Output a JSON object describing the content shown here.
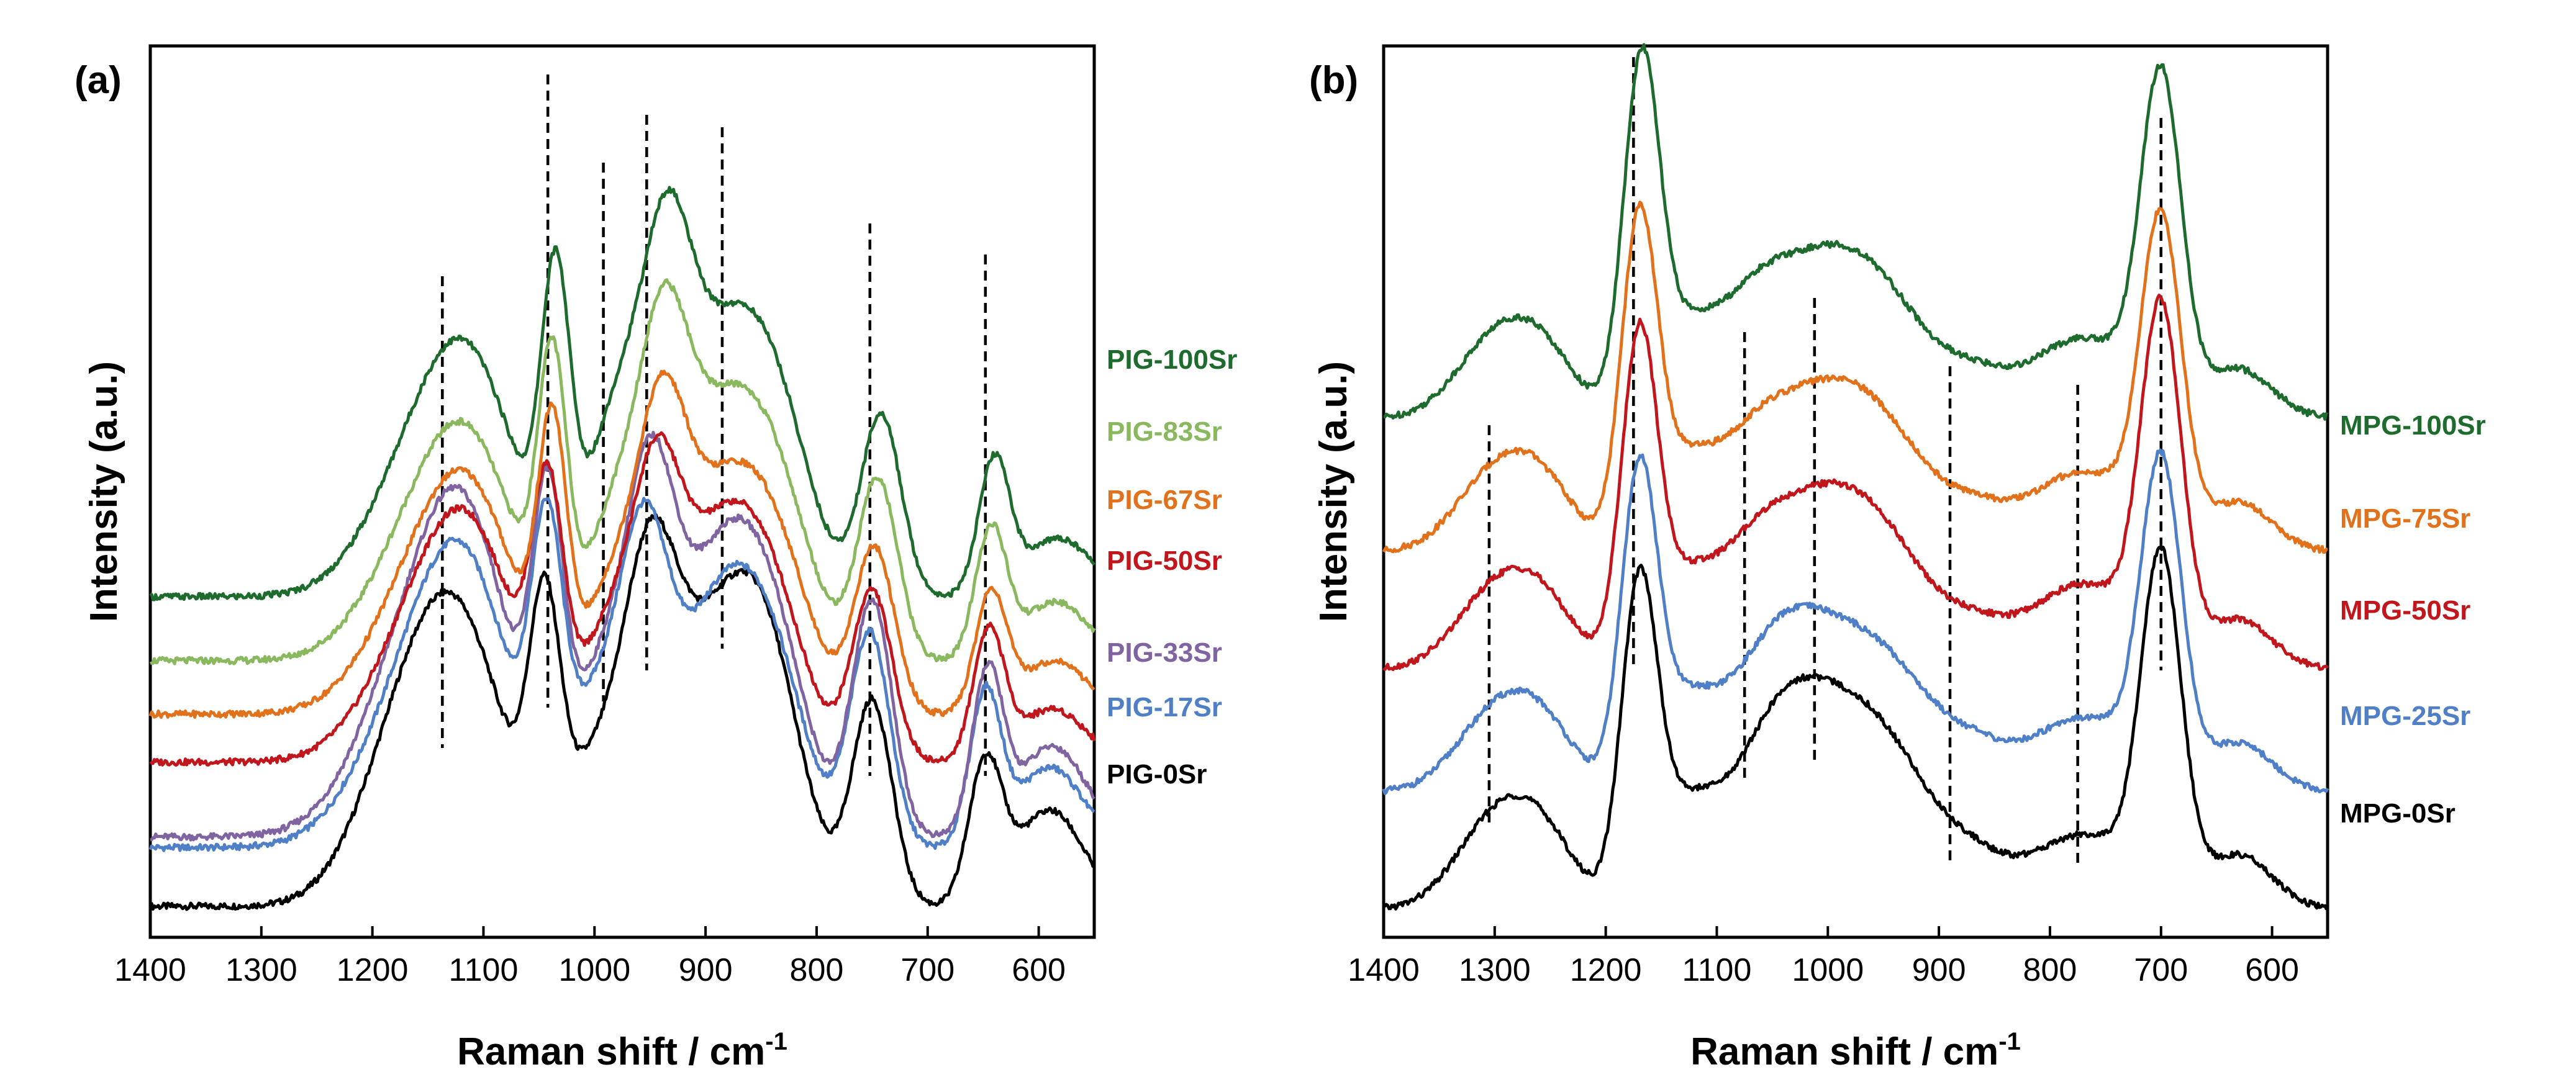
{
  "chart_data": [
    {
      "type": "line",
      "panel": "(a)",
      "xlabel": "Raman shift / cm",
      "xlabel_sup": "-1",
      "ylabel": "Intensity (a.u.)",
      "xlim": [
        1400,
        550
      ],
      "x_ticks": [
        1400,
        1300,
        1200,
        1100,
        1000,
        900,
        800,
        700,
        600
      ],
      "y_ticks_shown": false,
      "dashed_lines_x": [
        1137,
        1042,
        992,
        953,
        885,
        752,
        648
      ],
      "series": [
        {
          "name": "PIG-0Sr",
          "color": "#000000",
          "offset": 0.0,
          "peaks": [
            [
              1160,
              0.37,
              45
            ],
            [
              1110,
              0.33,
              40
            ],
            [
              1045,
              0.44,
              14
            ],
            [
              1000,
              0.24,
              30
            ],
            [
              950,
              0.48,
              24
            ],
            [
              885,
              0.52,
              45
            ],
            [
              840,
              0.22,
              30
            ],
            [
              750,
              0.38,
              18
            ],
            [
              648,
              0.26,
              15
            ],
            [
              590,
              0.18,
              30
            ]
          ]
        },
        {
          "name": "PIG-17Sr",
          "color": "#4f7fc6",
          "offset": 0.11,
          "peaks": [
            [
              1155,
              0.31,
              50
            ],
            [
              1110,
              0.34,
              40
            ],
            [
              1043,
              0.47,
              14
            ],
            [
              1000,
              0.25,
              28
            ],
            [
              955,
              0.48,
              22
            ],
            [
              885,
              0.46,
              40
            ],
            [
              835,
              0.2,
              30
            ],
            [
              752,
              0.4,
              18
            ],
            [
              648,
              0.28,
              14
            ],
            [
              590,
              0.15,
              30
            ]
          ]
        },
        {
          "name": "PIG-33Sr",
          "color": "#8064a2",
          "offset": 0.13,
          "peaks": [
            [
              1155,
              0.36,
              50
            ],
            [
              1110,
              0.38,
              40
            ],
            [
              1042,
              0.52,
              14
            ],
            [
              995,
              0.28,
              26
            ],
            [
              950,
              0.55,
              22
            ],
            [
              885,
              0.52,
              40
            ],
            [
              835,
              0.22,
              30
            ],
            [
              750,
              0.44,
              18
            ],
            [
              646,
              0.3,
              14
            ],
            [
              588,
              0.17,
              30
            ]
          ]
        },
        {
          "name": "PIG-50Sr",
          "color": "#c0161c",
          "offset": 0.27,
          "peaks": [
            [
              1150,
              0.26,
              48
            ],
            [
              1105,
              0.28,
              40
            ],
            [
              1042,
              0.43,
              14
            ],
            [
              990,
              0.22,
              26
            ],
            [
              945,
              0.42,
              22
            ],
            [
              885,
              0.43,
              40
            ],
            [
              835,
              0.17,
              30
            ],
            [
              750,
              0.32,
              18
            ],
            [
              645,
              0.24,
              14
            ],
            [
              588,
              0.1,
              30
            ]
          ]
        },
        {
          "name": "PIG-67Sr",
          "color": "#e2711c",
          "offset": 0.36,
          "peaks": [
            [
              1150,
              0.25,
              48
            ],
            [
              1105,
              0.27,
              40
            ],
            [
              1038,
              0.47,
              13
            ],
            [
              985,
              0.22,
              26
            ],
            [
              940,
              0.44,
              22
            ],
            [
              882,
              0.42,
              40
            ],
            [
              830,
              0.17,
              30
            ],
            [
              748,
              0.31,
              18
            ],
            [
              643,
              0.22,
              14
            ],
            [
              586,
              0.1,
              30
            ]
          ]
        },
        {
          "name": "PIG-83Sr",
          "color": "#8ab85e",
          "offset": 0.46,
          "peaks": [
            [
              1150,
              0.25,
              48
            ],
            [
              1105,
              0.26,
              40
            ],
            [
              1038,
              0.5,
              13
            ],
            [
              982,
              0.26,
              26
            ],
            [
              938,
              0.47,
              22
            ],
            [
              882,
              0.46,
              40
            ],
            [
              830,
              0.18,
              30
            ],
            [
              745,
              0.34,
              18
            ],
            [
              643,
              0.24,
              14
            ],
            [
              585,
              0.11,
              30
            ]
          ]
        },
        {
          "name": "PIG-100Sr",
          "color": "#1e6b2e",
          "offset": 0.58,
          "peaks": [
            [
              1150,
              0.27,
              48
            ],
            [
              1105,
              0.28,
              40
            ],
            [
              1035,
              0.54,
              13
            ],
            [
              980,
              0.33,
              26
            ],
            [
              935,
              0.5,
              22
            ],
            [
              880,
              0.48,
              40
            ],
            [
              830,
              0.19,
              30
            ],
            [
              742,
              0.34,
              18
            ],
            [
              640,
              0.25,
              14
            ],
            [
              582,
              0.11,
              30
            ]
          ]
        }
      ]
    },
    {
      "type": "line",
      "panel": "(b)",
      "xlabel": "Raman shift / cm",
      "xlabel_sup": "-1",
      "ylabel": "Intensity (a.u.)",
      "xlim": [
        1400,
        550
      ],
      "x_ticks": [
        1400,
        1300,
        1200,
        1100,
        1000,
        900,
        800,
        700,
        600
      ],
      "y_ticks_shown": false,
      "dashed_lines_x": [
        1305,
        1175,
        1075,
        1012,
        890,
        775,
        700
      ],
      "series": [
        {
          "name": "MPG-0Sr",
          "color": "#000000",
          "offset": 0.0,
          "peaks": [
            [
              1300,
              0.16,
              35
            ],
            [
              1255,
              0.11,
              30
            ],
            [
              1170,
              0.56,
              16
            ],
            [
              1130,
              0.18,
              30
            ],
            [
              1060,
              0.16,
              35
            ],
            [
              1010,
              0.33,
              45
            ],
            [
              940,
              0.22,
              40
            ],
            [
              870,
              0.07,
              30
            ],
            [
              770,
              0.14,
              50
            ],
            [
              700,
              0.62,
              18
            ],
            [
              630,
              0.1,
              30
            ]
          ]
        },
        {
          "name": "MPG-25Sr",
          "color": "#4f7fc6",
          "offset": 0.22,
          "peaks": [
            [
              1300,
              0.14,
              35
            ],
            [
              1255,
              0.1,
              30
            ],
            [
              1170,
              0.56,
              16
            ],
            [
              1130,
              0.16,
              30
            ],
            [
              1060,
              0.13,
              35
            ],
            [
              1012,
              0.26,
              45
            ],
            [
              940,
              0.18,
              40
            ],
            [
              870,
              0.06,
              30
            ],
            [
              770,
              0.14,
              50
            ],
            [
              700,
              0.58,
              18
            ],
            [
              630,
              0.09,
              30
            ]
          ]
        },
        {
          "name": "MPG-50Sr",
          "color": "#c0161c",
          "offset": 0.45,
          "peaks": [
            [
              1300,
              0.14,
              35
            ],
            [
              1255,
              0.1,
              30
            ],
            [
              1170,
              0.58,
              16
            ],
            [
              1130,
              0.16,
              30
            ],
            [
              1070,
              0.13,
              30
            ],
            [
              1012,
              0.28,
              45
            ],
            [
              945,
              0.18,
              40
            ],
            [
              870,
              0.06,
              30
            ],
            [
              770,
              0.16,
              50
            ],
            [
              700,
              0.63,
              18
            ],
            [
              630,
              0.09,
              30
            ]
          ]
        },
        {
          "name": "MPG-75Sr",
          "color": "#e2711c",
          "offset": 0.67,
          "peaks": [
            [
              1300,
              0.14,
              35
            ],
            [
              1255,
              0.1,
              30
            ],
            [
              1170,
              0.58,
              16
            ],
            [
              1130,
              0.16,
              30
            ],
            [
              1070,
              0.12,
              30
            ],
            [
              1012,
              0.26,
              45
            ],
            [
              945,
              0.17,
              40
            ],
            [
              870,
              0.06,
              30
            ],
            [
              770,
              0.15,
              50
            ],
            [
              700,
              0.58,
              18
            ],
            [
              630,
              0.09,
              30
            ]
          ]
        },
        {
          "name": "MPG-100Sr",
          "color": "#1e6b2e",
          "offset": 0.92,
          "peaks": [
            [
              1300,
              0.14,
              35
            ],
            [
              1255,
              0.1,
              30
            ],
            [
              1168,
              0.62,
              16
            ],
            [
              1130,
              0.16,
              30
            ],
            [
              1070,
              0.13,
              30
            ],
            [
              1012,
              0.26,
              45
            ],
            [
              945,
              0.17,
              40
            ],
            [
              870,
              0.06,
              30
            ],
            [
              770,
              0.15,
              50
            ],
            [
              700,
              0.6,
              18
            ],
            [
              630,
              0.09,
              30
            ]
          ]
        }
      ]
    }
  ]
}
